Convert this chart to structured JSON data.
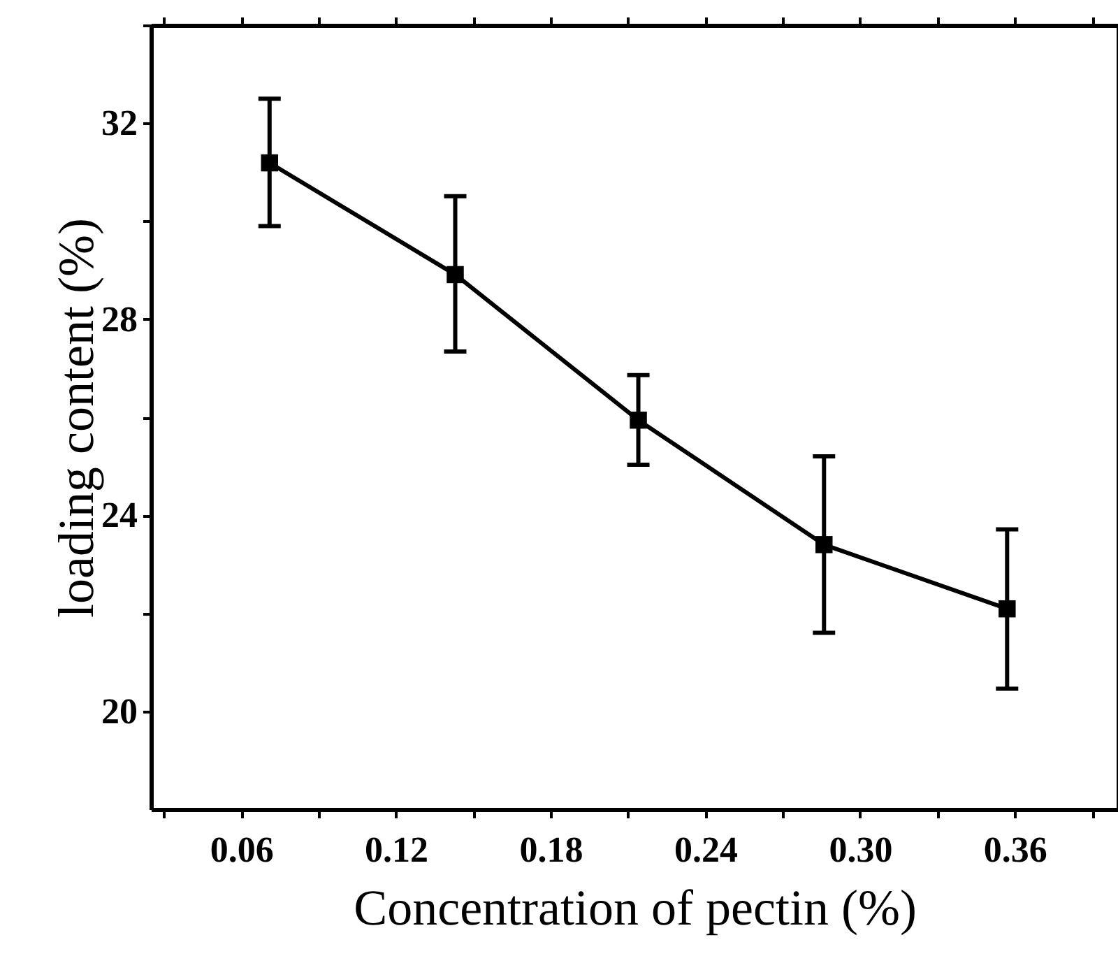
{
  "chart_data": {
    "type": "line",
    "xlabel": "Concentration of  pectin (%)",
    "ylabel": "loading content (%)",
    "x": [
      0.071,
      0.143,
      0.214,
      0.286,
      0.357
    ],
    "series": [
      {
        "color": "#000000",
        "values": [
          31.19,
          28.91,
          25.94,
          23.4,
          22.09
        ],
        "errors": [
          [
            29.9,
            32.5
          ],
          [
            27.34,
            30.51
          ],
          [
            25.03,
            26.86
          ],
          [
            21.6,
            25.2
          ],
          [
            20.46,
            23.71
          ]
        ]
      }
    ],
    "marker": "square",
    "line_style": "solid",
    "xlim": [
      0.025,
      0.4
    ],
    "xticks": [
      {
        "value": 0.03,
        "label": null
      },
      0.06,
      {
        "value": 0.09,
        "label": null
      },
      0.12,
      {
        "value": 0.15,
        "label": null
      },
      0.18,
      {
        "value": 0.21,
        "label": null
      },
      0.24,
      {
        "value": 0.27,
        "label": null
      },
      {
        "value": 0.3,
        "label": "0.30"
      },
      {
        "value": 0.33,
        "label": null
      },
      0.36,
      {
        "value": 0.39,
        "label": null
      }
    ],
    "ylim": [
      18,
      34
    ],
    "yticks": [
      20,
      {
        "value": 22,
        "label": null
      },
      24,
      {
        "value": 26,
        "label": null
      },
      28,
      {
        "value": 30,
        "label": null
      },
      32,
      {
        "value": 34,
        "label": null
      }
    ]
  }
}
